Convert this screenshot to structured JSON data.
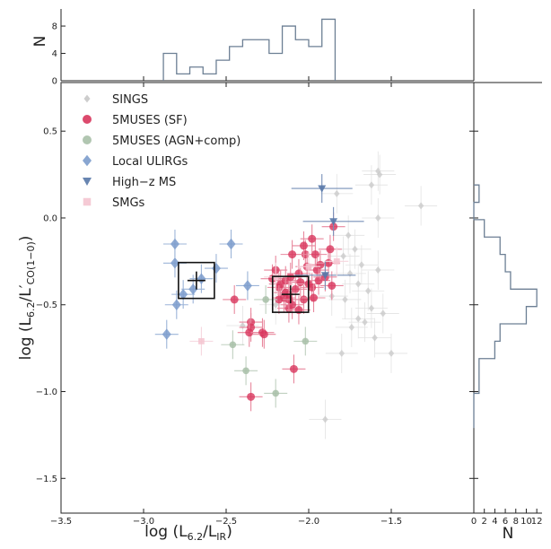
{
  "chart_data": {
    "type": "scatter",
    "xlabel_main": "log (L",
    "xlabel_sub": "6.2",
    "xlabel_mid": "/L",
    "xlabel_sub2": "IR",
    "xlabel_end": ")",
    "ylabel_main": "log (L",
    "ylabel_sub": "6.2",
    "ylabel_mid": "/L′",
    "ylabel_sub2": "CO(1−0)",
    "ylabel_end": ")",
    "xlim": [
      -3.5,
      -1.0
    ],
    "ylim": [
      -1.7,
      0.78
    ],
    "x_ticks": [
      -3.5,
      -3.0,
      -2.5,
      -2.0,
      -1.5
    ],
    "x_tick_labels": [
      "−3.5",
      "−3.0",
      "−2.5",
      "−2.0",
      "−1.5"
    ],
    "y_ticks": [
      0.5,
      0.0,
      -0.5,
      -1.0,
      -1.5
    ],
    "y_tick_labels": [
      "0.5",
      "0.0",
      "−0.5",
      "−1.0",
      "−1.5"
    ],
    "legend_position": "top-left",
    "series": [
      {
        "name": "SINGS",
        "marker": "diamond",
        "color": "#c8c8c8",
        "points": [
          [
            -1.58,
            0.27
          ],
          [
            -1.57,
            0.25
          ],
          [
            -1.62,
            0.19
          ],
          [
            -1.83,
            0.14
          ],
          [
            -1.32,
            0.07
          ],
          [
            -1.58,
            0.0
          ],
          [
            -1.76,
            -0.1
          ],
          [
            -1.72,
            -0.18
          ],
          [
            -1.79,
            -0.22
          ],
          [
            -1.68,
            -0.27
          ],
          [
            -1.58,
            -0.3
          ],
          [
            -1.75,
            -0.32
          ],
          [
            -1.7,
            -0.38
          ],
          [
            -1.64,
            -0.42
          ],
          [
            -1.78,
            -0.47
          ],
          [
            -1.62,
            -0.52
          ],
          [
            -1.7,
            -0.58
          ],
          [
            -1.66,
            -0.6
          ],
          [
            -1.74,
            -0.63
          ],
          [
            -1.6,
            -0.69
          ],
          [
            -1.8,
            -0.78
          ],
          [
            -1.5,
            -0.78
          ],
          [
            -1.9,
            -1.16
          ],
          [
            -2.2,
            -0.5
          ],
          [
            -2.4,
            -0.62
          ],
          [
            -1.86,
            -0.45
          ],
          [
            -1.55,
            -0.55
          ]
        ]
      },
      {
        "name": "5MUSES (SF)",
        "marker": "circle",
        "color": "#d8365d",
        "points": [
          [
            -2.45,
            -0.47
          ],
          [
            -2.35,
            -0.6
          ],
          [
            -2.35,
            -0.63
          ],
          [
            -2.36,
            -0.66
          ],
          [
            -2.35,
            -1.03
          ],
          [
            -2.28,
            -0.66
          ],
          [
            -2.27,
            -0.67
          ],
          [
            -2.22,
            -0.35
          ],
          [
            -2.2,
            -0.3
          ],
          [
            -2.18,
            -0.4
          ],
          [
            -2.17,
            -0.38
          ],
          [
            -2.15,
            -0.46
          ],
          [
            -2.14,
            -0.36
          ],
          [
            -2.12,
            -0.44
          ],
          [
            -2.12,
            -0.52
          ],
          [
            -2.11,
            -0.34
          ],
          [
            -2.1,
            -0.5
          ],
          [
            -2.08,
            -0.41
          ],
          [
            -2.06,
            -0.32
          ],
          [
            -2.05,
            -0.37
          ],
          [
            -2.03,
            -0.47
          ],
          [
            -2.02,
            -0.21
          ],
          [
            -2.01,
            -0.28
          ],
          [
            -2.0,
            -0.38
          ],
          [
            -1.98,
            -0.4
          ],
          [
            -1.97,
            -0.46
          ],
          [
            -1.96,
            -0.21
          ],
          [
            -1.95,
            -0.3
          ],
          [
            -1.94,
            -0.36
          ],
          [
            -1.93,
            -0.27
          ],
          [
            -1.9,
            -0.34
          ],
          [
            -1.88,
            -0.26
          ],
          [
            -1.87,
            -0.18
          ],
          [
            -1.86,
            -0.39
          ],
          [
            -1.85,
            -0.05
          ],
          [
            -2.03,
            -0.16
          ],
          [
            -1.98,
            -0.12
          ],
          [
            -2.1,
            -0.21
          ],
          [
            -2.09,
            -0.87
          ],
          [
            -2.14,
            -0.43
          ],
          [
            -2.12,
            -0.47
          ],
          [
            -2.18,
            -0.47
          ],
          [
            -2.06,
            -0.53
          ]
        ]
      },
      {
        "name": "5MUSES (AGN+comp)",
        "marker": "circle",
        "color": "#a8c0a8",
        "points": [
          [
            -2.46,
            -0.73
          ],
          [
            -2.38,
            -0.88
          ],
          [
            -2.2,
            -1.01
          ],
          [
            -2.26,
            -0.47
          ],
          [
            -2.02,
            -0.71
          ]
        ]
      },
      {
        "name": "Local ULIRGs",
        "marker": "diamond",
        "color": "#7c9ccc",
        "points": [
          [
            -2.86,
            -0.67
          ],
          [
            -2.8,
            -0.5
          ],
          [
            -2.81,
            -0.26
          ],
          [
            -2.81,
            -0.15
          ],
          [
            -2.76,
            -0.44
          ],
          [
            -2.7,
            -0.41
          ],
          [
            -2.56,
            -0.29
          ],
          [
            -2.47,
            -0.15
          ],
          [
            -2.37,
            -0.39
          ],
          [
            -2.65,
            -0.35
          ]
        ]
      },
      {
        "name": "High−z MS",
        "marker": "triangle-down",
        "color": "#5878a8",
        "points": [
          [
            -1.92,
            0.17
          ],
          [
            -1.85,
            -0.02
          ],
          [
            -1.9,
            -0.33
          ]
        ]
      },
      {
        "name": "SMGs",
        "marker": "square",
        "color": "#f4c4d0",
        "points": [
          [
            -2.65,
            -0.71
          ],
          [
            -1.83,
            -0.25
          ],
          [
            -2.2,
            -0.34
          ],
          [
            -2.0,
            -0.28
          ]
        ]
      }
    ],
    "big_boxes": [
      {
        "x": -2.68,
        "y": -0.36
      },
      {
        "x": -2.11,
        "y": -0.44
      }
    ],
    "top_hist": {
      "ylabel": "N",
      "ylim": [
        0,
        10.5
      ],
      "y_ticks": [
        0,
        4,
        8
      ],
      "y_tick_labels": [
        "0",
        "4",
        "8"
      ],
      "edges": [
        -2.88,
        -2.8,
        -2.72,
        -2.64,
        -2.56,
        -2.48,
        -2.4,
        -2.32,
        -2.24,
        -2.16,
        -2.08,
        -2.0,
        -1.92,
        -1.84
      ],
      "counts": [
        4,
        1,
        2,
        1,
        3,
        5,
        6,
        6,
        4,
        8,
        6,
        5,
        9
      ]
    },
    "right_hist": {
      "xlabel": "N",
      "xlim": [
        0,
        13
      ],
      "x_ticks": [
        0,
        2,
        4,
        6,
        8,
        10,
        12
      ],
      "x_tick_labels": [
        "0",
        "2",
        "4",
        "6",
        "8",
        "10",
        "12"
      ],
      "edges": [
        0.19,
        0.09,
        -0.01,
        -0.11,
        -0.21,
        -0.31,
        -0.41,
        -0.51,
        -0.61,
        -0.71,
        -0.81,
        -0.91,
        -1.01,
        -1.11,
        -1.21
      ],
      "counts": [
        1,
        0,
        2,
        5,
        6,
        7,
        12,
        10,
        5,
        4,
        1,
        1,
        0,
        0
      ]
    }
  }
}
